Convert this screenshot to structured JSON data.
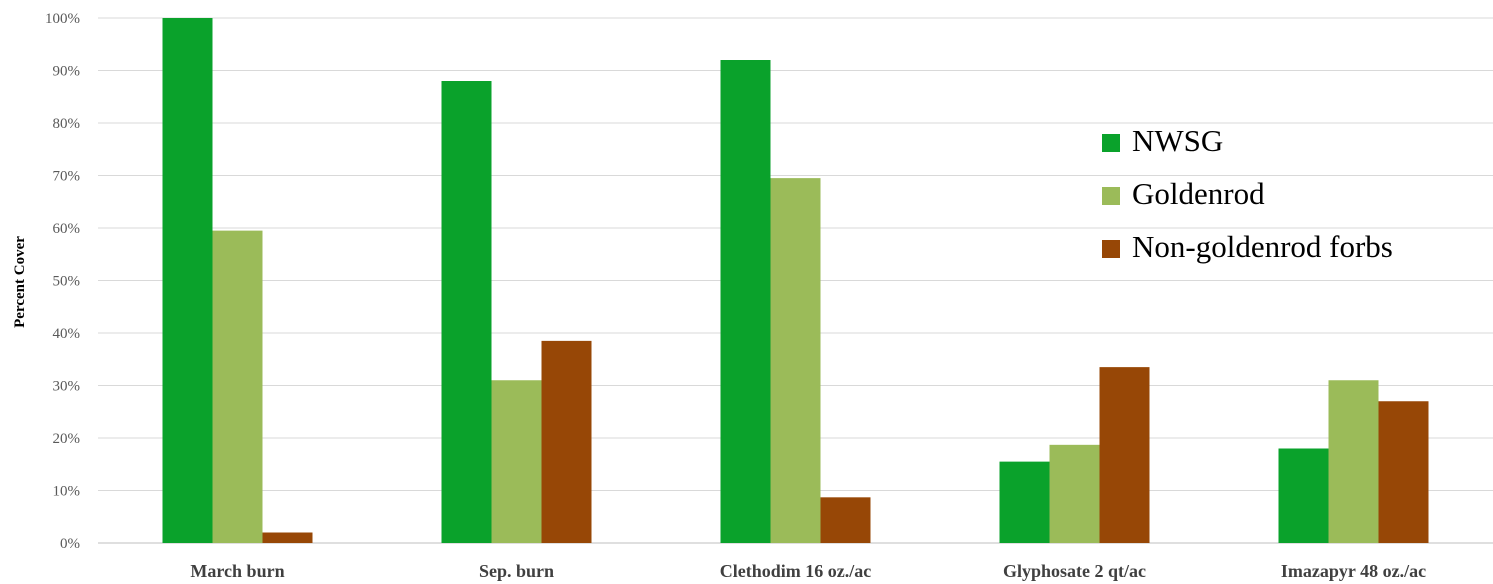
{
  "chart_data": {
    "type": "bar",
    "title": "",
    "xlabel": "",
    "ylabel": "Percent Cover",
    "ylim": [
      0,
      100
    ],
    "ytick_step": 10,
    "ytick_suffix": "%",
    "grid": true,
    "legend_position": "right",
    "categories": [
      "March burn",
      "Sep. burn",
      "Clethodim 16 oz./ac",
      "Glyphosate 2 qt/ac",
      "Imazapyr 48 oz./ac"
    ],
    "series": [
      {
        "name": "NWSG",
        "color": "#0aa22b",
        "values": [
          100,
          88,
          92,
          15.5,
          18
        ]
      },
      {
        "name": "Goldenrod",
        "color": "#9bbb59",
        "values": [
          59.5,
          31,
          69.5,
          18.7,
          31
        ]
      },
      {
        "name": "Non-goldenrod forbs",
        "color": "#974706",
        "values": [
          2,
          38.5,
          8.7,
          33.5,
          27
        ]
      }
    ]
  }
}
